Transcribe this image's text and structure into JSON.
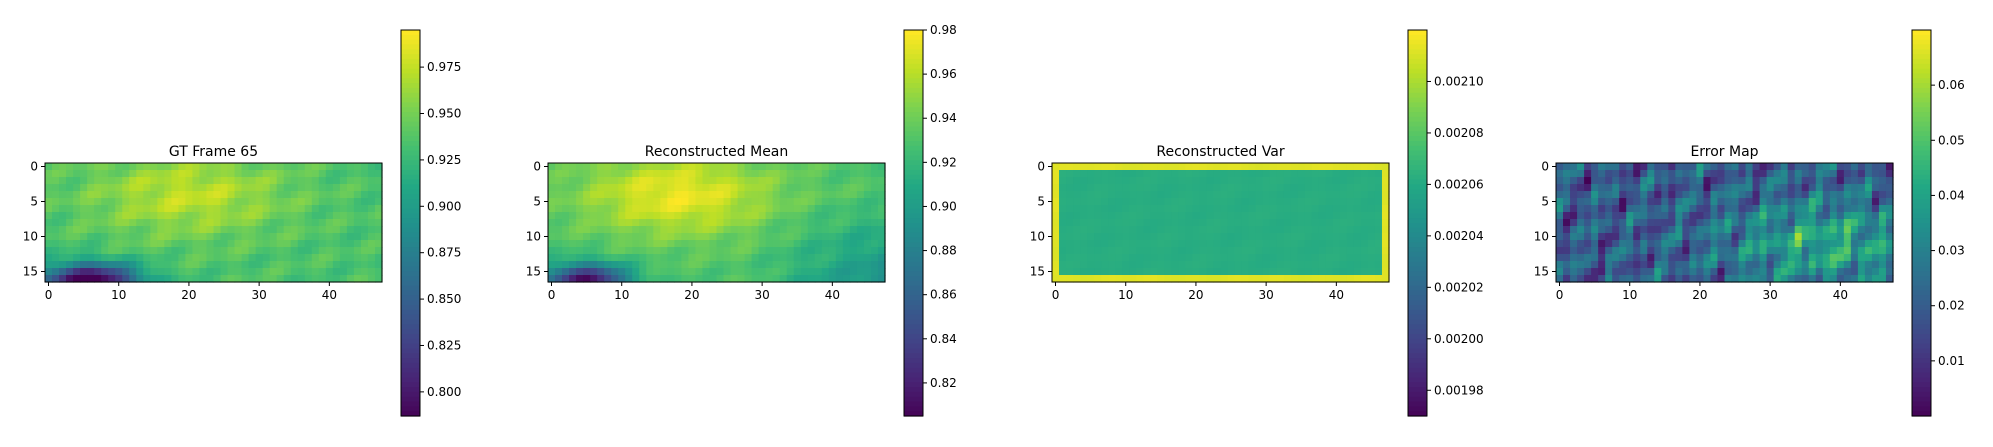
{
  "chart_data": [
    {
      "type": "heatmap",
      "title": "GT Frame 65",
      "grid": "off",
      "x_range": [
        0,
        47
      ],
      "y_range": [
        0,
        16
      ],
      "xticks": [
        "0",
        "10",
        "20",
        "30",
        "40"
      ],
      "yticks": [
        "0",
        "5",
        "10",
        "15"
      ],
      "colorbar": {
        "min": 0.787,
        "max": 0.995,
        "ticks": [
          "0.800",
          "0.825",
          "0.850",
          "0.875",
          "0.900",
          "0.925",
          "0.950",
          "0.975"
        ]
      },
      "field": {
        "base": 0.935,
        "bump": 0.04,
        "bump_center": [
          20,
          4
        ],
        "low": 0.165,
        "low_center": [
          6,
          16.5
        ],
        "low_spread": [
          7,
          2.6
        ],
        "ripple": 0.012,
        "edge": 0.0
      }
    },
    {
      "type": "heatmap",
      "title": "Reconstructed Mean",
      "grid": "off",
      "x_range": [
        0,
        47
      ],
      "y_range": [
        0,
        16
      ],
      "xticks": [
        "0",
        "10",
        "20",
        "30",
        "40"
      ],
      "yticks": [
        "0",
        "5",
        "10",
        "15"
      ],
      "colorbar": {
        "min": 0.805,
        "max": 0.98,
        "ticks": [
          "0.82",
          "0.84",
          "0.86",
          "0.88",
          "0.90",
          "0.92",
          "0.94",
          "0.96",
          "0.98"
        ]
      },
      "field": {
        "base": 0.93,
        "bump": 0.045,
        "bump_center": [
          18,
          4
        ],
        "low": 0.12,
        "low_center": [
          5,
          16.5
        ],
        "low_spread": [
          6,
          2.6
        ],
        "ripple": 0.008,
        "edge": 0.0,
        "right_drop": 0.04
      }
    },
    {
      "type": "heatmap",
      "title": "Reconstructed Var",
      "grid": "off",
      "x_range": [
        0,
        47
      ],
      "y_range": [
        0,
        16
      ],
      "xticks": [
        "0",
        "10",
        "20",
        "30",
        "40"
      ],
      "yticks": [
        "0",
        "5",
        "10",
        "15"
      ],
      "colorbar": {
        "min": 0.00197,
        "max": 0.00212,
        "ticks": [
          "0.00198",
          "0.00200",
          "0.00202",
          "0.00204",
          "0.00206",
          "0.00208",
          "0.00210"
        ]
      },
      "field": {
        "base": 0.002063,
        "bump": 0.0,
        "bump_center": [
          20,
          8
        ],
        "low": 0.0,
        "low_center": [
          0,
          0
        ],
        "low_spread": [
          1,
          1
        ],
        "ripple": 1.5e-06,
        "edge": 5e-05
      }
    },
    {
      "type": "heatmap",
      "title": "Error Map",
      "grid": "off",
      "x_range": [
        0,
        47
      ],
      "y_range": [
        0,
        16
      ],
      "xticks": [
        "0",
        "10",
        "20",
        "30",
        "40"
      ],
      "yticks": [
        "0",
        "5",
        "10",
        "15"
      ],
      "colorbar": {
        "min": 0.0,
        "max": 0.07,
        "ticks": [
          "0.01",
          "0.02",
          "0.03",
          "0.04",
          "0.05",
          "0.06"
        ]
      },
      "field": {
        "base": 0.02,
        "bump": 0.022,
        "bump_center": [
          38,
          11
        ],
        "low": 0.0,
        "low_center": [
          0,
          0
        ],
        "low_spread": [
          1,
          1
        ],
        "ripple": 0.012,
        "edge": 0.0,
        "noise": 0.01
      }
    }
  ]
}
